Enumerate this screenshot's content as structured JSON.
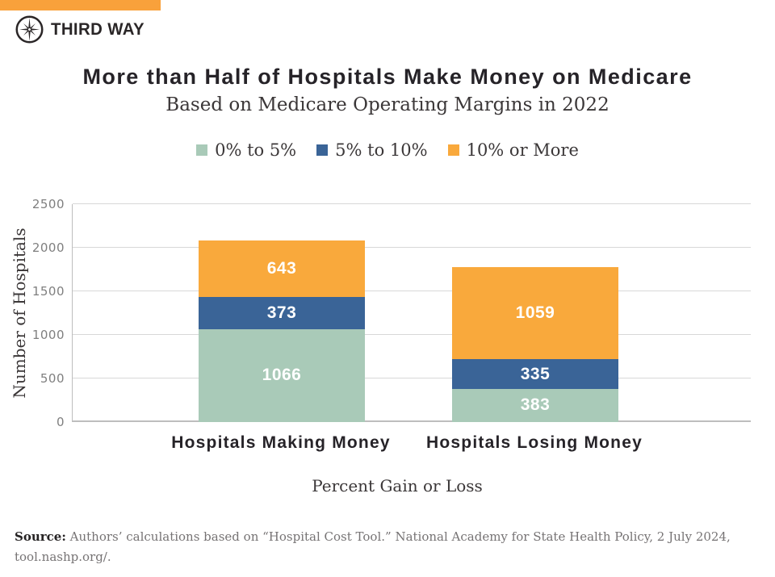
{
  "brand": {
    "name": "THIRD WAY",
    "logo_icon": "compass-star-icon",
    "accent_color": "#F9A13B",
    "text_color": "#2A2627"
  },
  "chart_data": {
    "type": "bar",
    "stacked": true,
    "title": "More than Half of Hospitals Make Money on Medicare",
    "subtitle": "Based on Medicare Operating Margins in 2022",
    "xlabel": "Percent Gain or Loss",
    "ylabel": "Number of Hospitals",
    "categories": [
      "Hospitals Making Money",
      "Hospitals Losing Money"
    ],
    "series": [
      {
        "name": "0% to 5%",
        "color": "#A9CAB8",
        "values": [
          1066,
          383
        ]
      },
      {
        "name": "5% to 10%",
        "color": "#3A6497",
        "values": [
          373,
          335
        ]
      },
      {
        "name": "10% or More",
        "color": "#F9A93C",
        "values": [
          643,
          1059
        ]
      }
    ],
    "ylim": [
      0,
      2500
    ],
    "ytick_step": 500,
    "yticks": [
      "0",
      "500",
      "1000",
      "1500",
      "2000",
      "2500"
    ],
    "grid": true,
    "legend_position": "top",
    "bar_value_labels": [
      [
        "1066",
        "373",
        "643"
      ],
      [
        "383",
        "335",
        "1059"
      ]
    ]
  },
  "source": {
    "prefix": "Source:",
    "text": " Authors’ calculations based on “Hospital Cost Tool.” National Academy for State Health Policy, 2 July 2024, tool.nashp.org/."
  }
}
